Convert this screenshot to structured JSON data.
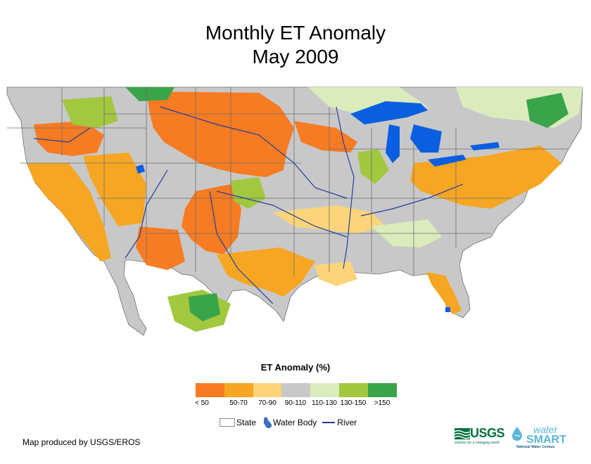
{
  "title_line1": "Monthly ET Anomaly",
  "title_line2": "May 2009",
  "legend": {
    "title": "ET Anomaly (%)",
    "classes": [
      {
        "label": "< 50",
        "color": "#f77b22"
      },
      {
        "label": "50-70",
        "color": "#f6a623"
      },
      {
        "label": "70-90",
        "color": "#fdd47a"
      },
      {
        "label": "90-110",
        "color": "#c8c8c8"
      },
      {
        "label": "110-130",
        "color": "#dbecbc"
      },
      {
        "label": "130-150",
        "color": "#a1c83f"
      },
      {
        "label": ">150",
        "color": "#3aa44a"
      }
    ]
  },
  "reference_legend": {
    "state": "State",
    "water_body": "Water Body",
    "river": "River"
  },
  "credit": "Map produced by USGS/EROS",
  "logos": {
    "usgs": "USGS",
    "usgs_tagline": "science for a changing world",
    "watersmart_top": "water",
    "watersmart_main": "SMART",
    "watersmart_sub": "National Water Census"
  },
  "colors": {
    "water": "#0a5ee0",
    "river": "#1f3f9f",
    "state_border": "#6e6e6e"
  }
}
